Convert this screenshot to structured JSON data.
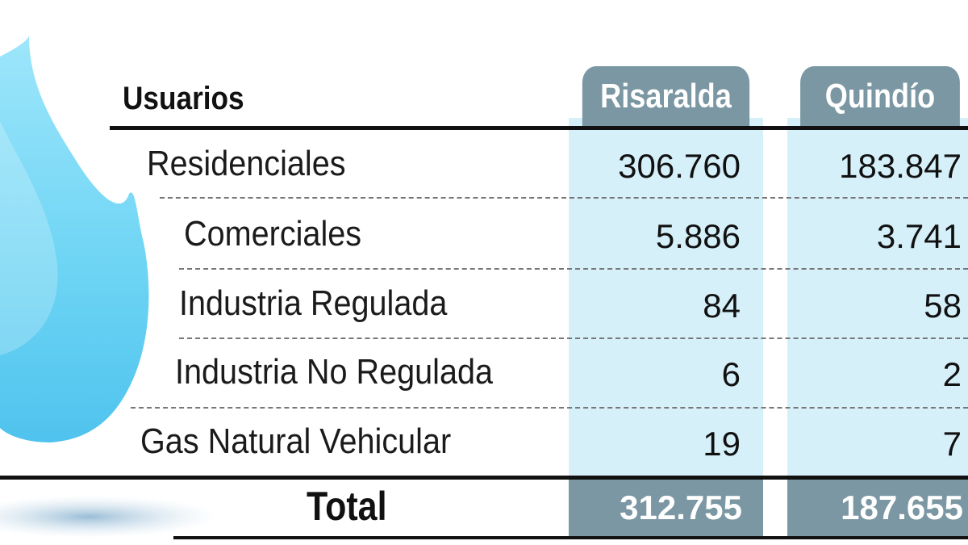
{
  "table": {
    "row_header": "Usuarios",
    "columns": [
      "Risaralda",
      "Quindío"
    ],
    "rows": [
      {
        "label": "Residenciales",
        "values": [
          "306.760",
          "183.847"
        ]
      },
      {
        "label": "Comerciales",
        "values": [
          "5.886",
          "3.741"
        ]
      },
      {
        "label": "Industria Regulada",
        "values": [
          "84",
          "58"
        ]
      },
      {
        "label": "Industria No Regulada",
        "values": [
          "6",
          "2"
        ]
      },
      {
        "label": "Gas Natural Vehicular",
        "values": [
          "19",
          "7"
        ]
      }
    ],
    "total": {
      "label": "Total",
      "values": [
        "312.755",
        "187.655"
      ]
    }
  },
  "chart_data": {
    "type": "table",
    "title": "",
    "row_header": "Usuarios",
    "columns": [
      "Risaralda",
      "Quindío"
    ],
    "rows": [
      {
        "label": "Residenciales",
        "values": [
          306760,
          183847
        ]
      },
      {
        "label": "Comerciales",
        "values": [
          5886,
          3741
        ]
      },
      {
        "label": "Industria Regulada",
        "values": [
          84,
          58
        ]
      },
      {
        "label": "Industria No Regulada",
        "values": [
          6,
          2
        ]
      },
      {
        "label": "Gas Natural Vehicular",
        "values": [
          19,
          7
        ]
      }
    ],
    "total": {
      "label": "Total",
      "values": [
        312755,
        187655
      ]
    }
  },
  "colors": {
    "header_fill": "#7a97a3",
    "column_fill": "#d6f0fa",
    "flame": "#6fd2f2"
  },
  "icons": {
    "decoration": "flame-icon"
  }
}
